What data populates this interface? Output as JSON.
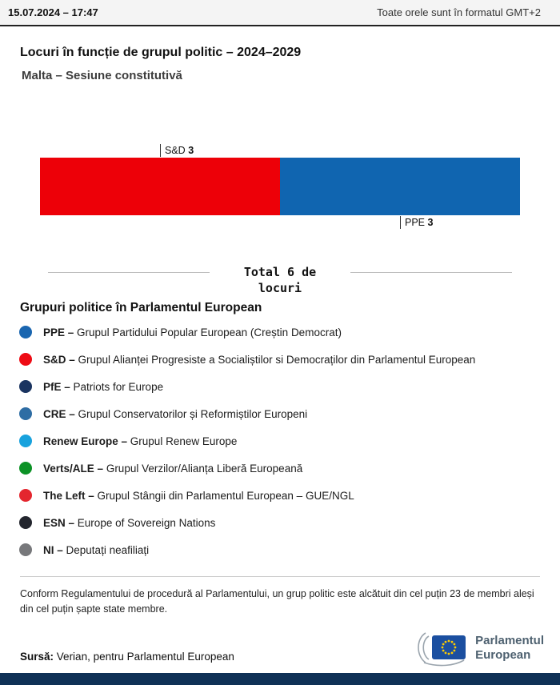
{
  "topbar": {
    "datetime": "15.07.2024 – 17:47",
    "timezone_note": "Toate orele sunt în formatul GMT+2"
  },
  "header": {
    "title": "Locuri în funcție de grupul politic – 2024–2029",
    "subtitle": "Malta – Sesiune constitutivă"
  },
  "chart_data": {
    "type": "bar",
    "orientation": "horizontal-stacked",
    "title": "Locuri în funcție de grupul politic – 2024–2029",
    "subtitle": "Malta – Sesiune constitutivă",
    "total": 6,
    "total_label": "Total 6 de locuri",
    "series": [
      {
        "name": "S&D",
        "value": 3,
        "color": "#ed0008",
        "label_position": "above"
      },
      {
        "name": "PPE",
        "value": 3,
        "color": "#1065b0",
        "label_position": "below"
      }
    ]
  },
  "legend": {
    "heading": "Grupuri politice în Parlamentul European",
    "items": [
      {
        "abbr": "PPE –",
        "desc": "Grupul Partidului Popular European (Creștin Democrat)",
        "color": "#1a66b0"
      },
      {
        "abbr": "S&D –",
        "desc": "Grupul Alianței Progresiste a Socialiștilor si Democraților din Parlamentul European",
        "color": "#ee0b14"
      },
      {
        "abbr": "PfE –",
        "desc": "Patriots for Europe",
        "color": "#1a3460"
      },
      {
        "abbr": "CRE –",
        "desc": "Grupul Conservatorilor și Reformiștilor Europeni",
        "color": "#2e6da4"
      },
      {
        "abbr": "Renew Europe –",
        "desc": "Grupul Renew Europe",
        "color": "#18a2dd"
      },
      {
        "abbr": "Verts/ALE –",
        "desc": "Grupul Verzilor/Alianța Liberă Europeană",
        "color": "#0c9226"
      },
      {
        "abbr": "The Left –",
        "desc": "Grupul Stângii din Parlamentul European – GUE/NGL",
        "color": "#e4262e"
      },
      {
        "abbr": "ESN –",
        "desc": "Europe of Sovereign Nations",
        "color": "#23262e"
      },
      {
        "abbr": "NI –",
        "desc": "Deputați neafiliați",
        "color": "#77787b"
      }
    ]
  },
  "footnote": "Conform Regulamentului de procedură al Parlamentului, un grup politic este alcătuit din cel puțin 23 de membri aleși din cel puțin șapte state membre.",
  "source": {
    "label": "Sursă:",
    "text": "Verian, pentru Parlamentul European"
  },
  "logo": {
    "line1": "Parlamentul",
    "line2": "European"
  }
}
